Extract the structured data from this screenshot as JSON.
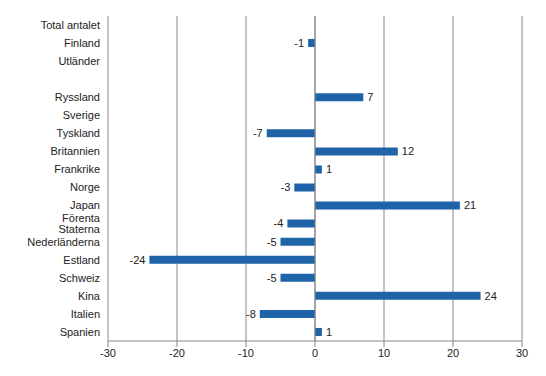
{
  "chart_data": {
    "type": "bar",
    "orientation": "horizontal",
    "categories": [
      "Total antalet",
      "Finland",
      "Utländer",
      null,
      "Ryssland",
      "Sverige",
      "Tyskland",
      "Britannien",
      "Frankrike",
      "Norge",
      "Japan",
      "Förenta Staterna",
      "Nederländerna",
      "Estland",
      "Schweiz",
      "Kina",
      "Italien",
      "Spanien"
    ],
    "values": [
      0,
      -1,
      0,
      null,
      7,
      0,
      -7,
      12,
      1,
      -3,
      21,
      -4,
      -5,
      -24,
      -5,
      24,
      -8,
      1
    ],
    "color": "#1f63a8",
    "xlim": [
      -30,
      30
    ],
    "xticks": [
      -30,
      -20,
      -10,
      0,
      10,
      20,
      30
    ],
    "grid": true,
    "data_labels": true
  }
}
